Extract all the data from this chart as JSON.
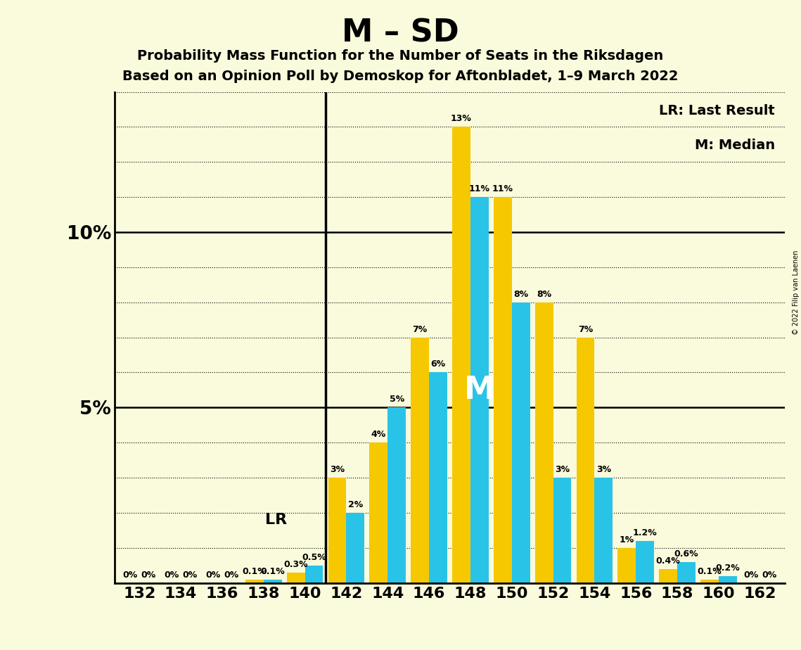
{
  "title": "M – SD",
  "subtitle1": "Probability Mass Function for the Number of Seats in the Riksdagen",
  "subtitle2": "Based on an Opinion Poll by Demoskop for Aftonbladet, 1–9 March 2022",
  "copyright": "© 2022 Filip van Laenen",
  "seats": [
    132,
    134,
    136,
    138,
    140,
    142,
    144,
    146,
    148,
    150,
    152,
    154,
    156,
    158,
    160,
    162
  ],
  "blue_values": [
    0.0,
    0.0,
    0.0,
    0.1,
    0.5,
    2.0,
    5.0,
    6.0,
    11.0,
    8.0,
    3.0,
    3.0,
    1.2,
    0.6,
    0.2,
    0.0
  ],
  "gold_values": [
    0.0,
    0.0,
    0.0,
    0.1,
    0.3,
    3.0,
    4.0,
    7.0,
    13.0,
    11.0,
    8.0,
    7.0,
    1.0,
    0.4,
    0.1,
    0.0
  ],
  "blue_color": "#29C3E8",
  "gold_color": "#F5C800",
  "background_color": "#FAFADC",
  "lr_seat": 141,
  "median_seat": 148,
  "ylim_max": 14,
  "legend_lr": "LR: Last Result",
  "legend_m": "M: Median",
  "lr_label": "LR",
  "m_label": "M"
}
